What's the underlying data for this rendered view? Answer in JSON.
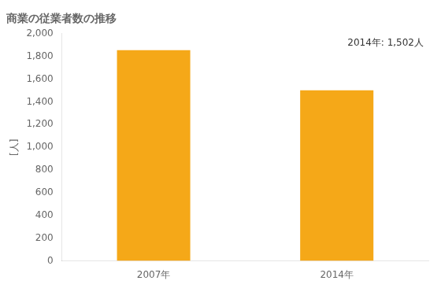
{
  "chart_data": {
    "type": "bar",
    "title": "商業の従業者数の推移",
    "ylabel": "[人]",
    "categories": [
      "2007年",
      "2014年"
    ],
    "values": [
      1855,
      1502
    ],
    "color": "#F5A818",
    "ylim": [
      0,
      2000
    ],
    "yticks": [
      0,
      200,
      400,
      600,
      800,
      {
        "value": 1000,
        "label": "1,000"
      },
      {
        "value": 1200,
        "label": "1,200"
      },
      {
        "value": 1400,
        "label": "1,400"
      },
      {
        "value": 1600,
        "label": "1,600"
      },
      {
        "value": 1800,
        "label": "1,800"
      },
      {
        "value": 2000,
        "label": "2,000"
      }
    ],
    "annotation": "2014年: 1,502人",
    "grid": false
  }
}
